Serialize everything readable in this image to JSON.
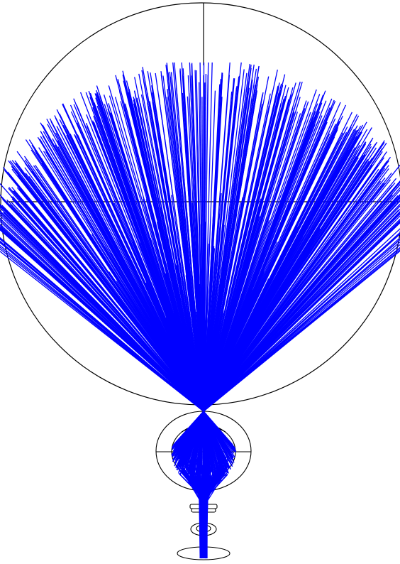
{
  "diagram": {
    "type": "optical-ray-trace",
    "colors": {
      "background": "#ffffff",
      "outline": "#000000",
      "rays": "#0000ff"
    },
    "elements": [
      "large-spherical-enclosure",
      "focal-point",
      "medium-elliptical-enclosure",
      "small-flat-lens",
      "small-round-lens",
      "base-elliptical-element"
    ],
    "ray_fans": [
      "upper-ray-fan",
      "middle-ray-fan",
      "narrow-ray-beam"
    ]
  }
}
